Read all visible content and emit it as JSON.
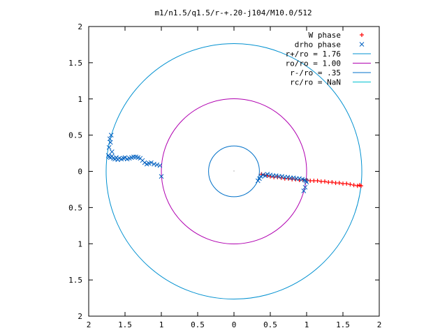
{
  "chart_data": {
    "type": "scatter",
    "title": "m1/n1.5/q1.5/r-+.20-j104/M10.0/512",
    "xlabel": "",
    "ylabel": "",
    "xlim": [
      -2,
      2
    ],
    "ylim": [
      -2,
      2
    ],
    "x_tick_values": [
      -2,
      -1.5,
      -1,
      -0.5,
      0,
      0.5,
      1,
      1.5,
      2
    ],
    "x_tick_labels": [
      "2",
      "1.5",
      "1",
      "0.5",
      "0",
      "0.5",
      "1",
      "1.5",
      "2"
    ],
    "y_tick_values": [
      2,
      1.5,
      1,
      0.5,
      0,
      -0.5,
      -1,
      -1.5,
      -2
    ],
    "y_tick_labels": [
      "2",
      "1.5",
      "1",
      "0.5",
      "0",
      "0.5",
      "1",
      "1.5",
      "2"
    ],
    "grid": false,
    "legend_position": "top-right",
    "series": [
      {
        "name": "W phase",
        "kind": "points",
        "marker": "+",
        "color": "#ff0000",
        "x": [
          0.38,
          0.42,
          0.46,
          0.5,
          0.55,
          0.6,
          0.65,
          0.7,
          0.75,
          0.8,
          0.85,
          0.9,
          0.95,
          1.0,
          1.05,
          1.1,
          1.15,
          1.2,
          1.25,
          1.3,
          1.35,
          1.4,
          1.45,
          1.5,
          1.55,
          1.6,
          1.65,
          1.7,
          1.73,
          1.75
        ],
        "y": [
          -0.04,
          -0.05,
          -0.06,
          -0.07,
          -0.08,
          -0.08,
          -0.09,
          -0.1,
          -0.1,
          -0.11,
          -0.11,
          -0.12,
          -0.12,
          -0.12,
          -0.13,
          -0.13,
          -0.13,
          -0.14,
          -0.14,
          -0.15,
          -0.15,
          -0.16,
          -0.16,
          -0.17,
          -0.17,
          -0.18,
          -0.19,
          -0.2,
          -0.19,
          -0.2
        ]
      },
      {
        "name": "drho phase",
        "kind": "points",
        "marker": "x",
        "color": "#0060c0",
        "x": [
          -1.73,
          -1.72,
          -1.7,
          -1.68,
          -1.66,
          -1.64,
          -1.62,
          -1.6,
          -1.58,
          -1.55,
          -1.52,
          -1.5,
          -1.47,
          -1.44,
          -1.41,
          -1.38,
          -1.35,
          -1.32,
          -1.29,
          -1.26,
          -1.23,
          -1.2,
          -1.17,
          -1.14,
          -1.1,
          -1.06,
          -1.02,
          -1.0,
          -1.72,
          -1.7,
          -1.71,
          -1.69,
          -1.68,
          0.33,
          0.35,
          0.37,
          0.4,
          0.43,
          0.46,
          0.5,
          0.54,
          0.58,
          0.62,
          0.66,
          0.7,
          0.74,
          0.78,
          0.82,
          0.86,
          0.9,
          0.94,
          0.97,
          0.99,
          1.0,
          0.98,
          0.96
        ],
        "y": [
          0.22,
          0.2,
          0.19,
          0.21,
          0.18,
          0.17,
          0.19,
          0.16,
          0.18,
          0.17,
          0.18,
          0.19,
          0.17,
          0.18,
          0.19,
          0.2,
          0.2,
          0.19,
          0.18,
          0.15,
          0.12,
          0.1,
          0.11,
          0.12,
          0.1,
          0.09,
          0.08,
          -0.07,
          0.33,
          0.4,
          0.45,
          0.5,
          0.27,
          -0.13,
          -0.1,
          -0.07,
          -0.05,
          -0.06,
          -0.04,
          -0.05,
          -0.06,
          -0.06,
          -0.07,
          -0.07,
          -0.08,
          -0.08,
          -0.09,
          -0.09,
          -0.1,
          -0.1,
          -0.11,
          -0.12,
          -0.13,
          -0.15,
          -0.22,
          -0.27
        ]
      },
      {
        "name": "r+/ro = 1.76",
        "kind": "circle",
        "radius": 1.76,
        "color": "#0090d0"
      },
      {
        "name": "ro/ro = 1.00",
        "kind": "circle",
        "radius": 1.0,
        "color": "#b000b0"
      },
      {
        "name": "r-/ro = .35",
        "kind": "circle",
        "radius": 0.35,
        "color": "#0070c8"
      },
      {
        "name": "rc/ro = NaN",
        "kind": "circle",
        "radius": null,
        "color": "#00c0d0"
      }
    ]
  }
}
